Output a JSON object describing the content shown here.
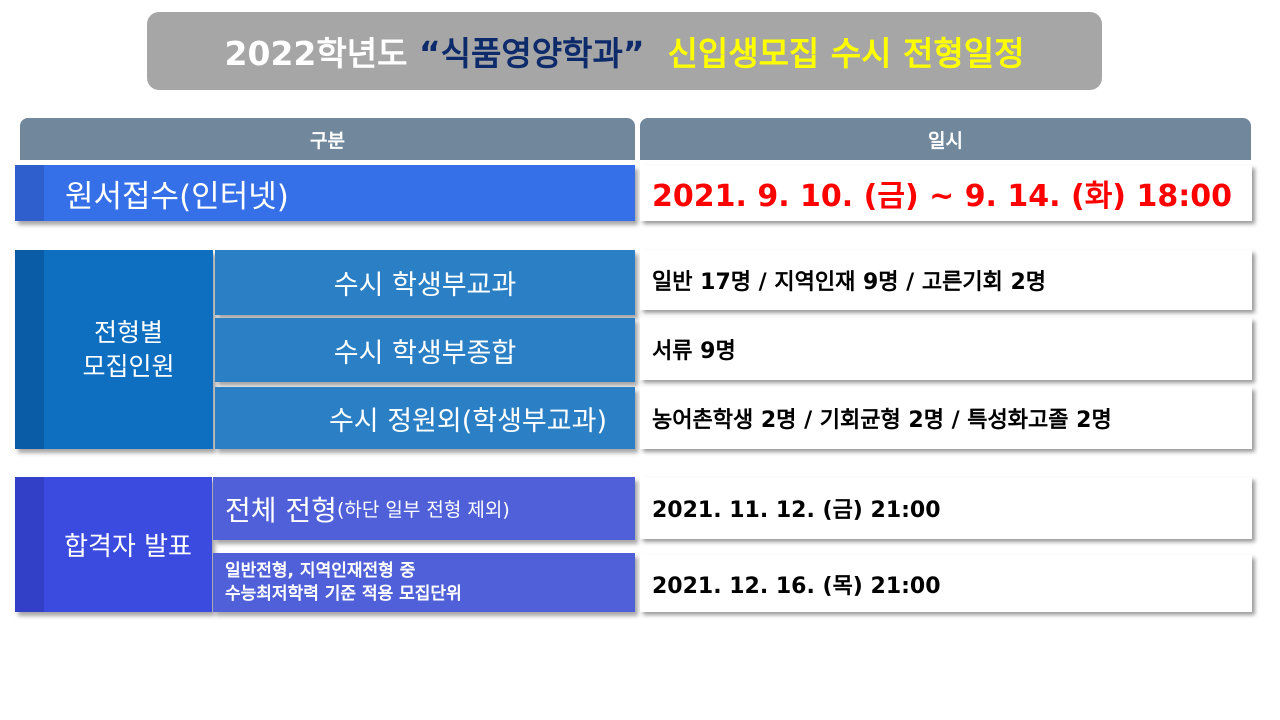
{
  "title": {
    "part1": "2022학년도 ",
    "part2": "“식품영양학과”",
    "part3": "  신입생모집 수시 전형일정"
  },
  "header": {
    "col1": "구분",
    "col2": "일시"
  },
  "application": {
    "label": "원서접수(인터넷)",
    "date": "2021. 9. 10. (금) ~ 9. 14. (화) 18:00"
  },
  "quota": {
    "label_line1": "전형별",
    "label_line2": "모집인원",
    "rows": [
      {
        "label": "수시 학생부교과",
        "value": "일반 17명 / 지역인재 9명 / 고른기회 2명"
      },
      {
        "label": "수시 학생부종합",
        "value": "서류 9명"
      },
      {
        "label": "수시 정원외(학생부교과)",
        "value": "농어촌학생 2명 / 기회균형 2명 / 특성화고졸 2명"
      }
    ]
  },
  "announcement": {
    "label": "합격자 발표",
    "row1": {
      "label_main": "전체 전형",
      "label_note": "(하단 일부 전형 제외)",
      "date": "2021. 11. 12. (금) 21:00"
    },
    "row2": {
      "label_line1": "일반전형, 지역인재전형 중",
      "label_line2": "수능최저학력 기준 적용 모집단위",
      "date": "2021. 12. 16. (목) 21:00"
    }
  },
  "colors": {
    "title_bg": "#a6a6a6",
    "title_highlight": "#ffff00",
    "title_dept": "#0d2a6b",
    "header_bg": "#71879c",
    "application_bg": "#3670e8",
    "date_red": "#ff0000",
    "quota_bg": "#0e6fc0",
    "quota_sub_bg": "#2b80c5",
    "announce_bg": "#3b4be0",
    "announce_sub_bg": "#5060d8"
  }
}
